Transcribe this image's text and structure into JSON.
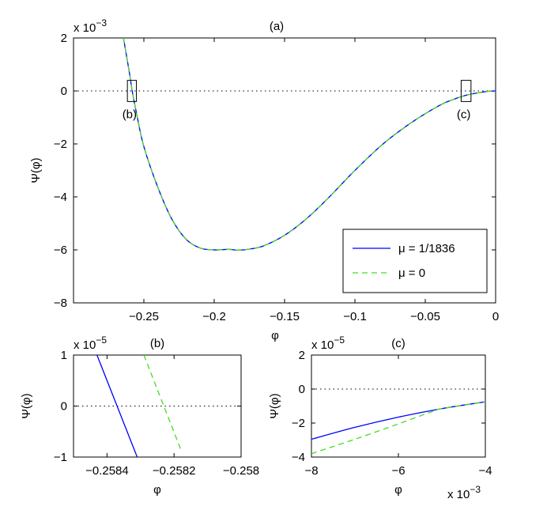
{
  "chart_data": [
    {
      "type": "line",
      "title": "(a)",
      "xlabel": "φ",
      "ylabel": "Ψ(φ)",
      "y_multiplier": "x 10",
      "y_exponent": "−3",
      "xlim": [
        -0.3,
        0
      ],
      "ylim": [
        -8,
        2
      ],
      "y_scale_factor": 0.001,
      "x_ticks": [
        -0.25,
        -0.2,
        -0.15,
        -0.1,
        -0.05,
        0
      ],
      "x_tick_labels": [
        "−0.25",
        "−0.2",
        "−0.15",
        "−0.1",
        "−0.05",
        "0"
      ],
      "y_ticks": [
        -8,
        -6,
        -4,
        -2,
        0,
        2
      ],
      "y_tick_labels": [
        "−8",
        "−6",
        "−4",
        "−2",
        "0",
        "2"
      ],
      "zero_line": "dotted",
      "legend": {
        "placement": "bottom-right",
        "entries": [
          "μ = 1/1836",
          "μ = 0"
        ]
      },
      "annotations": [
        {
          "text": "(b)",
          "box_x": [
            -0.2617,
            -0.2553
          ],
          "box_y": [
            -0.4,
            0.4
          ]
        },
        {
          "text": "(c)",
          "box_x": [
            -0.0245,
            -0.0175
          ],
          "box_y": [
            -0.4,
            0.4
          ]
        }
      ],
      "series": [
        {
          "name": "μ = 1/1836",
          "color": "#0000ff",
          "style": "solid",
          "x": [
            -0.2645,
            -0.26,
            -0.2583,
            -0.255,
            -0.25,
            -0.24,
            -0.23,
            -0.22,
            -0.21,
            -0.2,
            -0.19,
            -0.183,
            -0.175,
            -0.165,
            -0.15,
            -0.135,
            -0.12,
            -0.1,
            -0.08,
            -0.06,
            -0.04,
            -0.03,
            -0.02,
            -0.01,
            -0.005,
            0
          ],
          "y": [
            2.0,
            0.6,
            0.0,
            -0.9,
            -2.1,
            -3.65,
            -4.85,
            -5.6,
            -5.93,
            -6.0,
            -5.98,
            -6.01,
            -5.97,
            -5.85,
            -5.45,
            -4.85,
            -4.1,
            -3.0,
            -2.0,
            -1.2,
            -0.55,
            -0.32,
            -0.15,
            -0.05,
            -0.012,
            0
          ]
        },
        {
          "name": "μ = 0",
          "color": "#44dd22",
          "style": "dashed",
          "x": [
            -0.2645,
            -0.26,
            -0.2583,
            -0.255,
            -0.25,
            -0.24,
            -0.23,
            -0.22,
            -0.21,
            -0.2,
            -0.19,
            -0.183,
            -0.175,
            -0.165,
            -0.15,
            -0.135,
            -0.12,
            -0.1,
            -0.08,
            -0.06,
            -0.04,
            -0.03,
            -0.02,
            -0.01,
            -0.005,
            0
          ],
          "y": [
            2.0,
            0.6,
            0.0,
            -0.9,
            -2.1,
            -3.65,
            -4.85,
            -5.6,
            -5.93,
            -6.0,
            -5.98,
            -6.01,
            -5.97,
            -5.85,
            -5.45,
            -4.85,
            -4.1,
            -3.0,
            -2.0,
            -1.2,
            -0.55,
            -0.32,
            -0.15,
            -0.05,
            -0.012,
            0
          ]
        }
      ]
    },
    {
      "type": "line",
      "title": "(b)",
      "xlabel": "φ",
      "ylabel": "Ψ(φ)",
      "y_multiplier": "x 10",
      "y_exponent": "−5",
      "xlim": [
        -0.2585,
        -0.258
      ],
      "ylim": [
        -1,
        1
      ],
      "x_ticks": [
        -0.2584,
        -0.2582,
        -0.258
      ],
      "x_tick_labels": [
        "−0.2584",
        "−0.2582",
        "−0.258"
      ],
      "y_ticks": [
        -1,
        0,
        1
      ],
      "y_tick_labels": [
        "−1",
        "0",
        "1"
      ],
      "zero_line": "dotted",
      "series": [
        {
          "color": "#0000ff",
          "style": "solid",
          "x": [
            -0.25843,
            -0.25831
          ],
          "y": [
            1,
            -1
          ]
        },
        {
          "color": "#44dd22",
          "style": "dashed",
          "x": [
            -0.25829,
            -0.25818
          ],
          "y": [
            1,
            -0.85
          ]
        }
      ]
    },
    {
      "type": "line",
      "title": "(c)",
      "xlabel": "φ",
      "ylabel": "Ψ(φ)",
      "y_multiplier": "x 10",
      "y_exponent": "−5",
      "x_multiplier": "x 10",
      "x_exponent": "−3",
      "xlim": [
        -8,
        -4
      ],
      "ylim": [
        -4,
        2
      ],
      "x_ticks": [
        -8,
        -6,
        -4
      ],
      "x_tick_labels": [
        "−8",
        "−6",
        "−4"
      ],
      "y_ticks": [
        -4,
        -2,
        0,
        2
      ],
      "y_tick_labels": [
        "−4",
        "−2",
        "0",
        "2"
      ],
      "zero_line": "dotted",
      "series": [
        {
          "color": "#0000ff",
          "style": "solid",
          "x": [
            -8,
            -7,
            -6,
            -5,
            -4
          ],
          "y": [
            -2.95,
            -2.25,
            -1.65,
            -1.15,
            -0.75
          ]
        },
        {
          "color": "#44dd22",
          "style": "dashed",
          "x": [
            -8,
            -7,
            -6,
            -5.2,
            -5,
            -4
          ],
          "y": [
            -3.8,
            -2.95,
            -2.05,
            -1.3,
            -1.15,
            -0.75
          ]
        }
      ]
    }
  ]
}
